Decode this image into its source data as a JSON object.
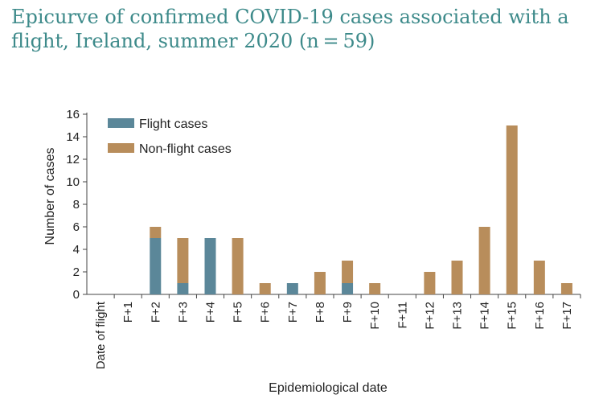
{
  "colors": {
    "flight": "#5b8799",
    "nonflight": "#b88d5b",
    "title": "#3d8a8a"
  },
  "chart_data": {
    "type": "bar",
    "stacked": true,
    "title": "Epicurve of confirmed COVID-19 cases associated with a flight, Ireland, summer 2020 (n = 59)",
    "xlabel": "Epidemiological date",
    "ylabel": "Number of cases",
    "ylim": [
      0,
      16
    ],
    "yticks": [
      0,
      2,
      4,
      6,
      8,
      10,
      12,
      14,
      16
    ],
    "categories": [
      "Date of flight",
      "F+1",
      "F+2",
      "F+3",
      "F+4",
      "F+5",
      "F+6",
      "F+7",
      "F+8",
      "F+9",
      "F+10",
      "F+11",
      "F+12",
      "F+13",
      "F+14",
      "F+15",
      "F+16",
      "F+17"
    ],
    "series": [
      {
        "name": "Flight cases",
        "values": [
          0,
          0,
          5,
          1,
          5,
          0,
          0,
          1,
          0,
          1,
          0,
          0,
          0,
          0,
          0,
          0,
          0,
          0
        ]
      },
      {
        "name": "Non-flight cases",
        "values": [
          0,
          0,
          1,
          4,
          0,
          5,
          1,
          0,
          2,
          2,
          1,
          0,
          2,
          3,
          6,
          15,
          3,
          1
        ]
      }
    ],
    "legend_position": "top-left"
  }
}
